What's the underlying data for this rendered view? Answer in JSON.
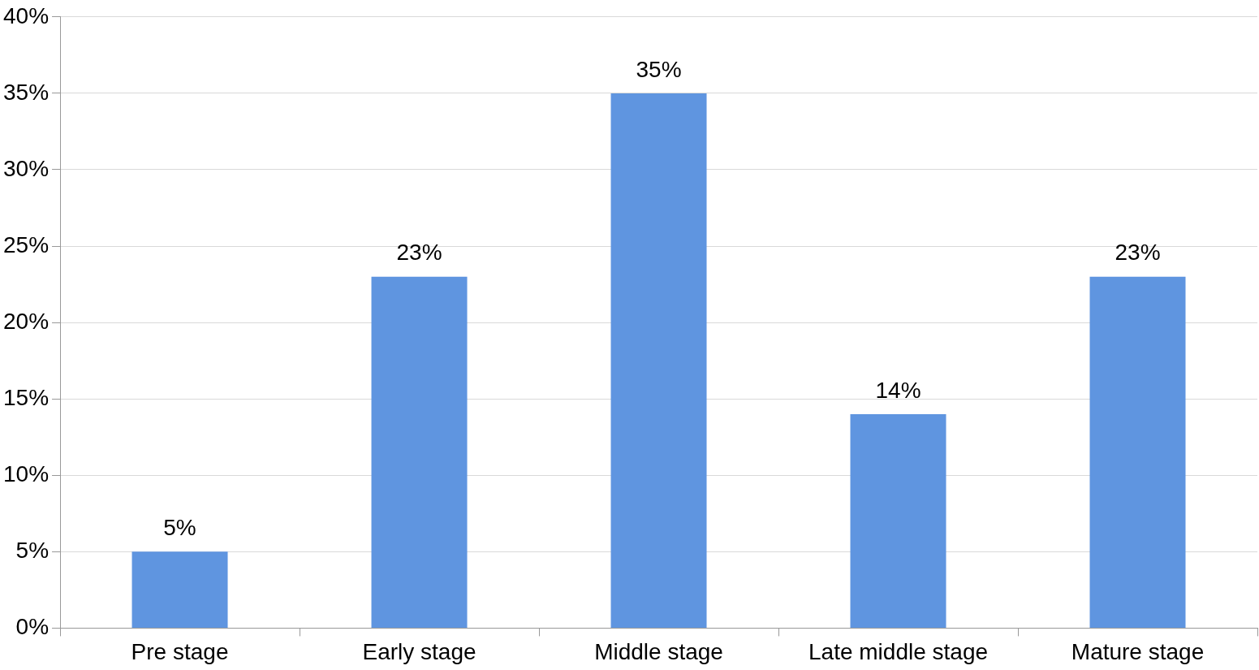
{
  "chart_data": {
    "type": "bar",
    "categories": [
      "Pre stage",
      "Early stage",
      "Middle stage",
      "Late middle stage",
      "Mature stage"
    ],
    "values": [
      5,
      23,
      35,
      14,
      23
    ],
    "value_labels": [
      "5%",
      "23%",
      "35%",
      "14%",
      "23%"
    ],
    "color": "#5f95e0",
    "ylim": [
      0,
      40
    ],
    "yticks": [
      {
        "value": 0,
        "label": "0%"
      },
      {
        "value": 5,
        "label": "5%"
      },
      {
        "value": 10,
        "label": "10%"
      },
      {
        "value": 15,
        "label": "15%"
      },
      {
        "value": 20,
        "label": "20%"
      },
      {
        "value": 25,
        "label": "25%"
      },
      {
        "value": 30,
        "label": "30%"
      },
      {
        "value": 35,
        "label": "35%"
      },
      {
        "value": 40,
        "label": "40%"
      }
    ],
    "grid": "y"
  }
}
